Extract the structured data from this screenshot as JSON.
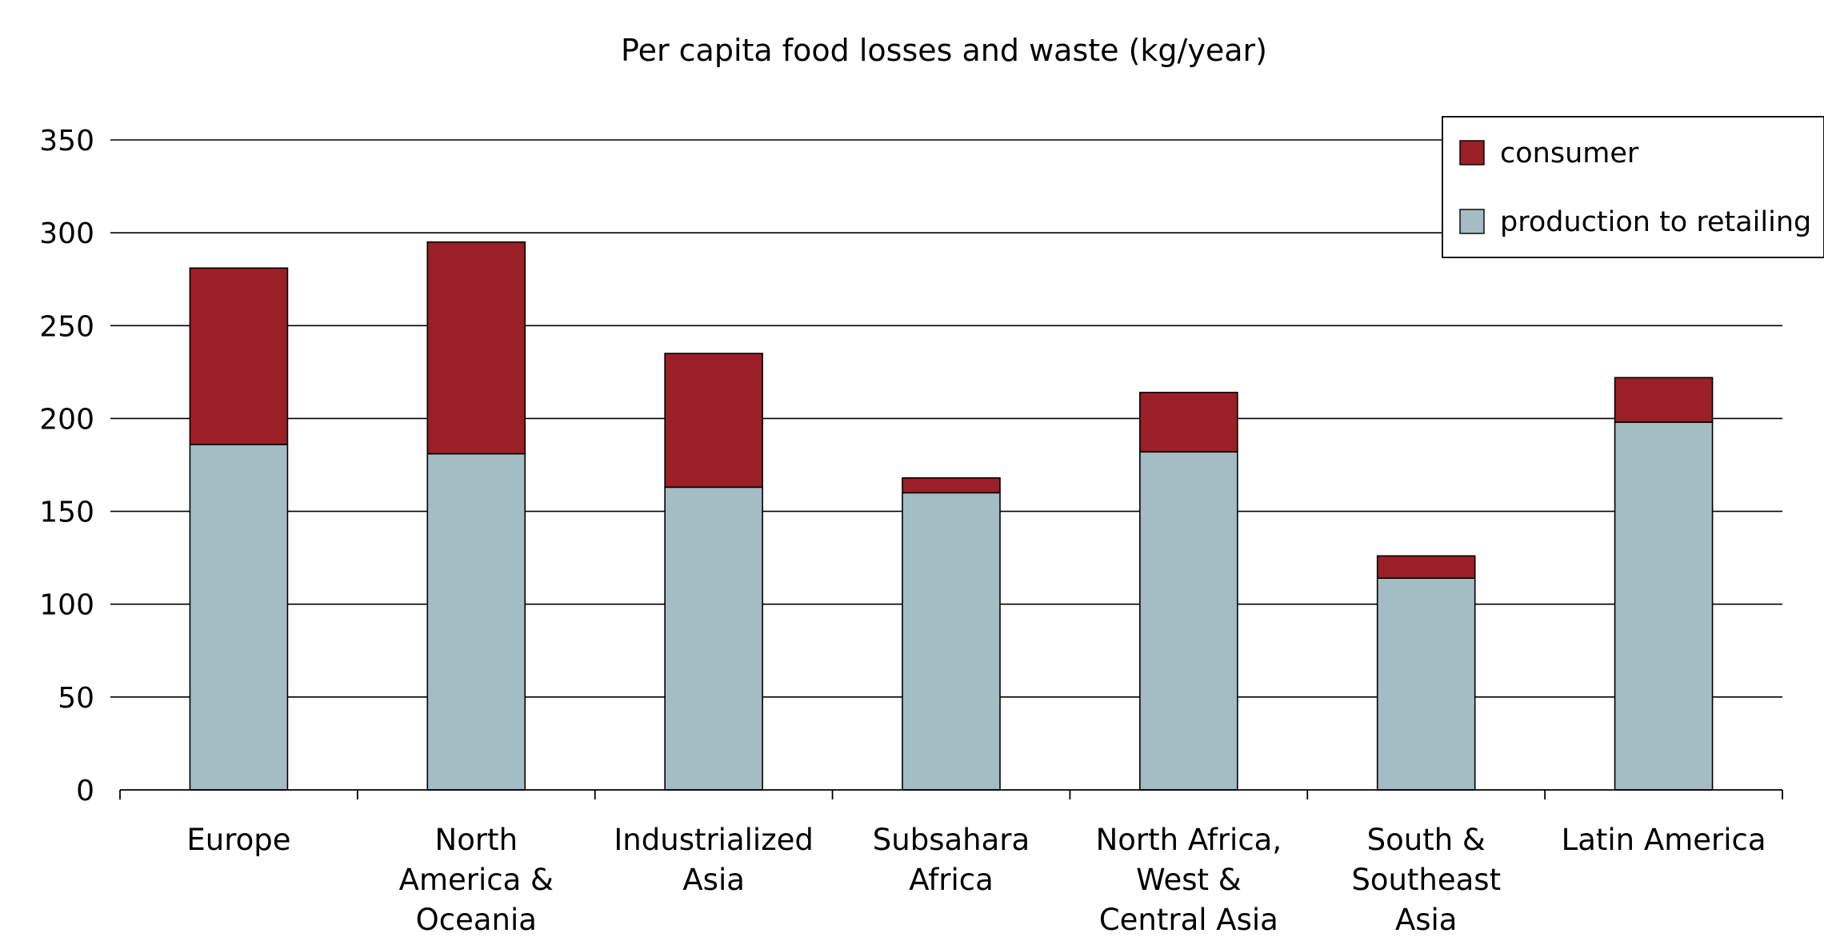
{
  "chart_data": {
    "type": "bar",
    "stacked": true,
    "title": "Per capita food losses and waste (kg/year)",
    "xlabel": "",
    "ylabel": "",
    "ylim": [
      0,
      350
    ],
    "yticks": [
      0,
      50,
      100,
      150,
      200,
      250,
      300,
      350
    ],
    "grid": true,
    "legend_position": "top-right",
    "categories": [
      "Europe",
      "North America & Oceania",
      "Industrialized Asia",
      "Subsahara Africa",
      "North Africa, West & Central Asia",
      "South & Southeast Asia",
      "Latin America"
    ],
    "category_lines": [
      [
        "Europe"
      ],
      [
        "North",
        "America &",
        "Oceania"
      ],
      [
        "Industrialized",
        "Asia"
      ],
      [
        "Subsahara",
        "Africa"
      ],
      [
        "North Africa,",
        "West &",
        "Central Asia"
      ],
      [
        "South &",
        "Southeast",
        "Asia"
      ],
      [
        "Latin America"
      ]
    ],
    "series": [
      {
        "name": "production to retailing",
        "color": "#a4bcc4",
        "values": [
          186,
          181,
          163,
          160,
          182,
          114,
          198
        ]
      },
      {
        "name": "consumer",
        "color": "#9b1f27",
        "values": [
          95,
          114,
          72,
          8,
          32,
          12,
          24
        ]
      }
    ],
    "legend": [
      {
        "name": "consumer",
        "color": "#9b1f27"
      },
      {
        "name": "production to retailing",
        "color": "#a4bcc4"
      }
    ]
  }
}
